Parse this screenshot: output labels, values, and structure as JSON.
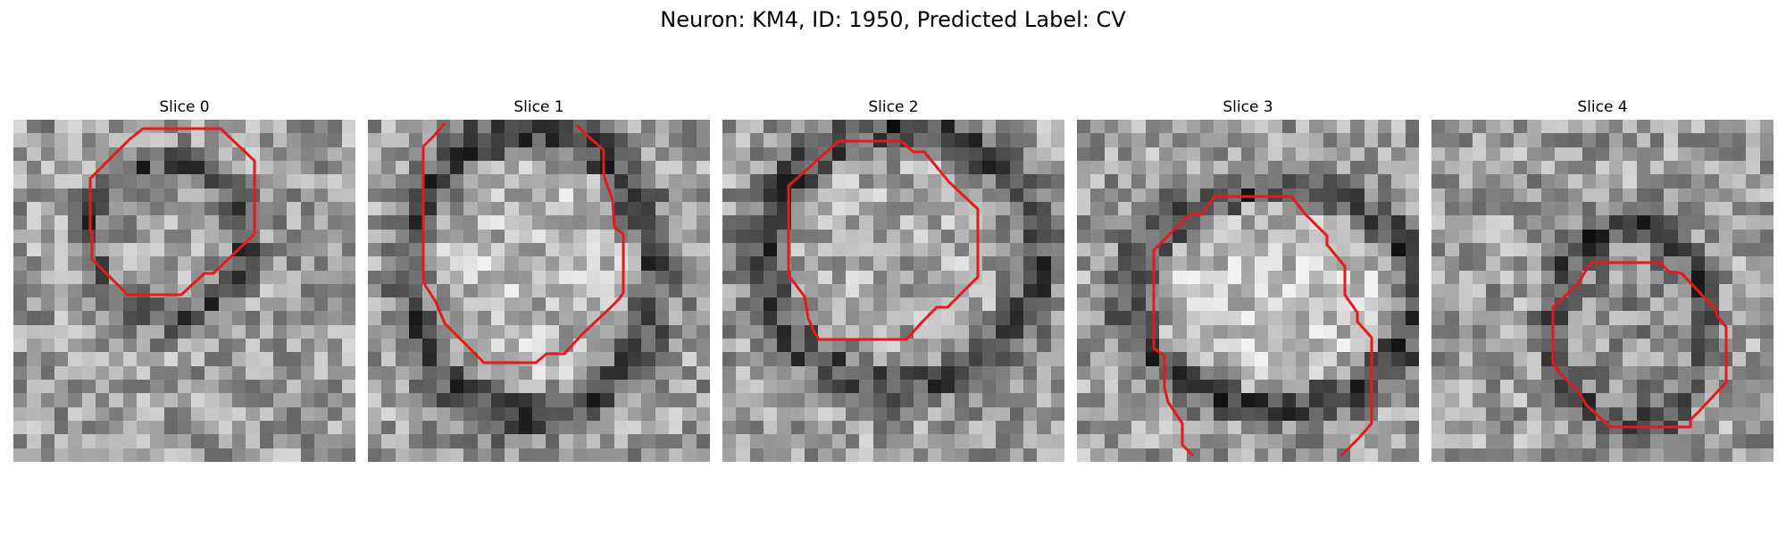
{
  "figure": {
    "title": "Neuron: KM4, ID: 1950, Predicted Label: CV"
  },
  "colors": {
    "contour": "#e41a1c",
    "background": "#ffffff",
    "image_colormap": "grayscale"
  },
  "panels": [
    {
      "label": "Slice 0"
    },
    {
      "label": "Slice 1"
    },
    {
      "label": "Slice 2"
    },
    {
      "label": "Slice 3"
    },
    {
      "label": "Slice 4"
    }
  ]
}
